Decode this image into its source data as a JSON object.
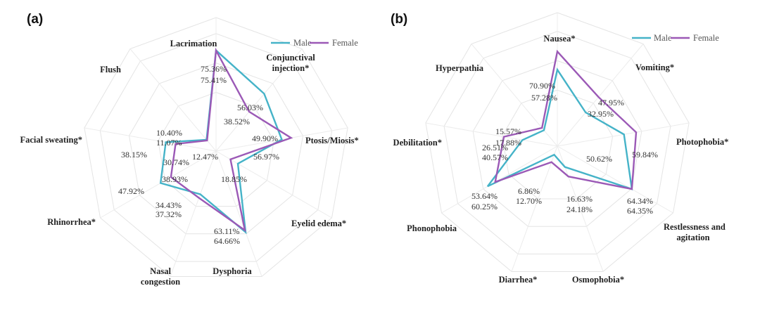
{
  "chart_data": [
    {
      "type": "radar",
      "panel": "(a)",
      "legend": [
        "Male",
        "Female"
      ],
      "colors": {
        "Male": "#45b3c8",
        "Female": "#9b59b6"
      },
      "axes": [
        "Lacrimation",
        "Conjunctival injection*",
        "Ptosis/Miosis*",
        "Eyelid edema*",
        "Dysphoria",
        "Nasal congestion",
        "Rhinorrhea*",
        "Facial sweating*",
        "Flush"
      ],
      "axis_label_lines": [
        [
          "Lacrimation"
        ],
        [
          "Conjunctival",
          "injection*"
        ],
        [
          "Ptosis/Miosis*"
        ],
        [
          "Eyelid edema*"
        ],
        [
          "Dysphoria"
        ],
        [
          "Nasal",
          "congestion"
        ],
        [
          "Rhinorrhea*"
        ],
        [
          "Facial sweating*"
        ],
        [
          "Flush"
        ]
      ],
      "rmax": 100,
      "series": [
        {
          "name": "Male",
          "values": [
            75.41,
            56.03,
            49.9,
            18.85,
            64.66,
            34.43,
            47.92,
            38.15,
            11.07
          ]
        },
        {
          "name": "Female",
          "values": [
            75.36,
            38.52,
            56.97,
            12.47,
            63.11,
            37.32,
            38.93,
            30.74,
            10.4
          ]
        }
      ],
      "value_labels": [
        "75.36%",
        "75.41%",
        "56.03%",
        "38.52%",
        "49.90%",
        "56.97%",
        "18.85%",
        "12.47%",
        "63.11%",
        "64.66%",
        "34.43%",
        "37.32%",
        "38.93%",
        "47.92%",
        "30.74%",
        "38.15%",
        "10.40%",
        "11.07%"
      ]
    },
    {
      "type": "radar",
      "panel": "(b)",
      "legend": [
        "Male",
        "Female"
      ],
      "colors": {
        "Male": "#45b3c8",
        "Female": "#9b59b6"
      },
      "axes": [
        "Nausea*",
        "Vomiting*",
        "Photophobia*",
        "Restlessness and agitation",
        "Osmophobia*",
        "Diarrhea*",
        "Phonophobia",
        "Debilitation*",
        "Hyperpathia"
      ],
      "axis_label_lines": [
        [
          "Nausea*"
        ],
        [
          "Vomiting*"
        ],
        [
          "Photophobia*"
        ],
        [
          "Restlessness and",
          "agitation"
        ],
        [
          "Osmophobia*"
        ],
        [
          "Diarrhea*"
        ],
        [
          "Phonophobia"
        ],
        [
          "Debilitation*"
        ],
        [
          "Hyperpathia"
        ]
      ],
      "rmax": 100,
      "series": [
        {
          "name": "Male",
          "values": [
            57.28,
            32.95,
            50.62,
            64.35,
            16.63,
            6.86,
            60.25,
            26.51,
            15.57
          ]
        },
        {
          "name": "Female",
          "values": [
            70.9,
            47.95,
            59.84,
            64.34,
            24.18,
            12.7,
            53.64,
            40.57,
            17.88
          ]
        }
      ],
      "value_labels": [
        "70.90%",
        "57.28%",
        "47.95%",
        "32.95%",
        "59.84%",
        "50.62%",
        "64.34%",
        "64.35%",
        "16.63%",
        "24.18%",
        "6.86%",
        "12.70%",
        "53.64%",
        "60.25%",
        "26.51%",
        "40.57%",
        "15.57%",
        "17.88%"
      ]
    }
  ]
}
